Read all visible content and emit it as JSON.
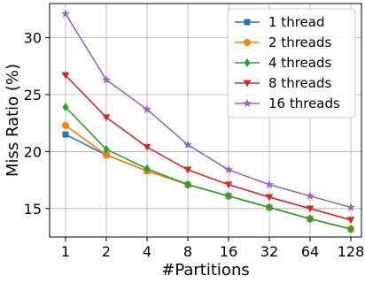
{
  "chart_data": {
    "type": "line",
    "title": "",
    "xlabel": "#Partitions",
    "ylabel": "Miss Ratio (%)",
    "x_scale": "log2",
    "categories": [
      "1",
      "2",
      "4",
      "8",
      "16",
      "32",
      "64",
      "128"
    ],
    "ylim": [
      12.5,
      33
    ],
    "yticks": [
      15,
      20,
      25,
      30
    ],
    "grid": true,
    "legend_position": "top-right",
    "series": [
      {
        "name": "1 thread",
        "color": "#1f77b4",
        "marker": "square",
        "values": [
          21.5,
          19.7,
          18.3,
          17.1,
          16.1,
          15.1,
          14.1,
          13.2
        ]
      },
      {
        "name": "2 threads",
        "color": "#ff7f0e",
        "marker": "circle",
        "values": [
          22.3,
          19.7,
          18.3,
          17.1,
          16.1,
          15.1,
          14.1,
          13.2
        ]
      },
      {
        "name": "4 threads",
        "color": "#2ca02c",
        "marker": "diamond",
        "values": [
          23.9,
          20.2,
          18.5,
          17.1,
          16.1,
          15.1,
          14.1,
          13.2
        ]
      },
      {
        "name": "8 threads",
        "color": "#d62728",
        "marker": "triangle-down",
        "values": [
          26.7,
          23.0,
          20.4,
          18.4,
          17.1,
          16.0,
          15.0,
          14.0
        ]
      },
      {
        "name": "16 threads",
        "color": "#9467bd",
        "marker": "star",
        "values": [
          32.1,
          26.3,
          23.7,
          20.6,
          18.4,
          17.1,
          16.1,
          15.1
        ]
      }
    ]
  }
}
